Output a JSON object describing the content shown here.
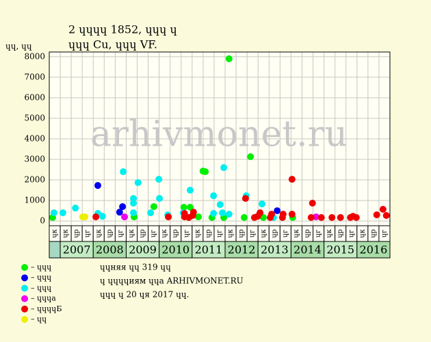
{
  "chart_data": {
    "type": "scatter",
    "title": "2 ɥɥɥɥ 1852, ɥɥɥ ɥ",
    "subtitle": "ɥɥɥ Cu, ɥɥɥ VF.",
    "y_label": "ɥɥ, ɥɥ",
    "watermark": "arhivmonet.ru",
    "xlim": [
      2006.667,
      2017
    ],
    "ylim": [
      -230,
      8230
    ],
    "yticks": [
      0,
      1000,
      2000,
      3000,
      4000,
      5000,
      6000,
      7000,
      8000
    ],
    "grid": true,
    "column_labels": [
      "ɥк",
      "ɥк",
      "ɥр",
      "ɥг",
      "ɥк",
      "ɥр",
      "ɥг",
      "ɥк",
      "ɥр",
      "ɥг",
      "ɥк",
      "ɥр",
      "ɥг",
      "ɥк",
      "ɥр",
      "ɥг",
      "ɥк",
      "ɥр",
      "ɥг",
      "ɥк",
      "ɥр",
      "ɥг",
      "ɥк",
      "ɥр",
      "ɥг",
      "ɥк",
      "ɥр",
      "ɥг",
      "ɥк",
      "ɥр",
      "ɥг"
    ],
    "years": [
      null,
      "2007",
      "2008",
      "2009",
      "2010",
      "2011",
      "2012",
      "2013",
      "2014",
      "2015",
      "2016"
    ],
    "series": [
      {
        "name": "– ɥɥɥ",
        "color": "#00ee00",
        "x": [
          2006.77,
          2009.24,
          2009.84,
          2010.75,
          2010.94,
          2011.19,
          2011.33,
          2011.4,
          2011.6,
          2011.96,
          2012.12,
          2012.58,
          2012.77,
          2013.16,
          2014.05
        ],
        "values": [
          170,
          200,
          700,
          670,
          670,
          200,
          2430,
          2400,
          170,
          170,
          7900,
          170,
          3130,
          170,
          170
        ]
      },
      {
        "name": "– ɥɥɥ",
        "color": "#0000ee",
        "x": [
          2008.14,
          2008.8,
          2008.89,
          2013.58
        ],
        "values": [
          1730,
          430,
          700,
          500
        ]
      },
      {
        "name": "– ɥɥɥ",
        "color": "#00eeee",
        "x": [
          2006.81,
          2007.08,
          2007.46,
          2008.14,
          2008.28,
          2008.91,
          2009.22,
          2009.22,
          2009.22,
          2009.36,
          2009.74,
          2009.99,
          2010.01,
          2010.26,
          2010.73,
          2010.94,
          2011.65,
          2011.65,
          2011.85,
          2011.92,
          2011.96,
          2012.12,
          2012.64,
          2013.12,
          2013.47
        ],
        "values": [
          400,
          400,
          630,
          370,
          230,
          2400,
          1100,
          870,
          400,
          1870,
          400,
          2030,
          1100,
          300,
          400,
          1500,
          370,
          1230,
          800,
          400,
          2600,
          330,
          1230,
          830,
          170
        ]
      },
      {
        "name": "– ɥɥɥa",
        "color": "#ee00ee",
        "x": [
          2008.95,
          2014.76
        ],
        "values": [
          200,
          200
        ]
      },
      {
        "name": "– ɥɥɥɥБ",
        "color": "#ee0000",
        "x": [
          2008.08,
          2010.28,
          2010.77,
          2010.77,
          2010.9,
          2011.02,
          2011.04,
          2012.62,
          2012.89,
          2012.99,
          2013.06,
          2013.37,
          2013.41,
          2013.74,
          2013.76,
          2014.03,
          2014.03,
          2014.61,
          2014.65,
          2014.92,
          2015.24,
          2015.5,
          2015.8,
          2015.88,
          2015.98,
          2016.6,
          2016.79,
          2016.89
        ],
        "values": [
          200,
          200,
          370,
          200,
          170,
          270,
          430,
          1100,
          170,
          230,
          400,
          170,
          330,
          170,
          330,
          2030,
          330,
          170,
          870,
          170,
          170,
          170,
          170,
          230,
          170,
          300,
          570,
          270
        ]
      },
      {
        "name": "– ɥɥ",
        "color": "#eeee00",
        "x": [
          2007.68,
          2007.75
        ],
        "values": [
          200,
          200
        ]
      }
    ],
    "notes": [
      "ɥɥняя ɥɥ 319 ɥɥ",
      "ɥ ɥɥɥɥиям ɥɥa ARHIVMONET.RU",
      "ɥɥɥ ɥ 20 ɥя 2017 ɥɥ."
    ]
  }
}
